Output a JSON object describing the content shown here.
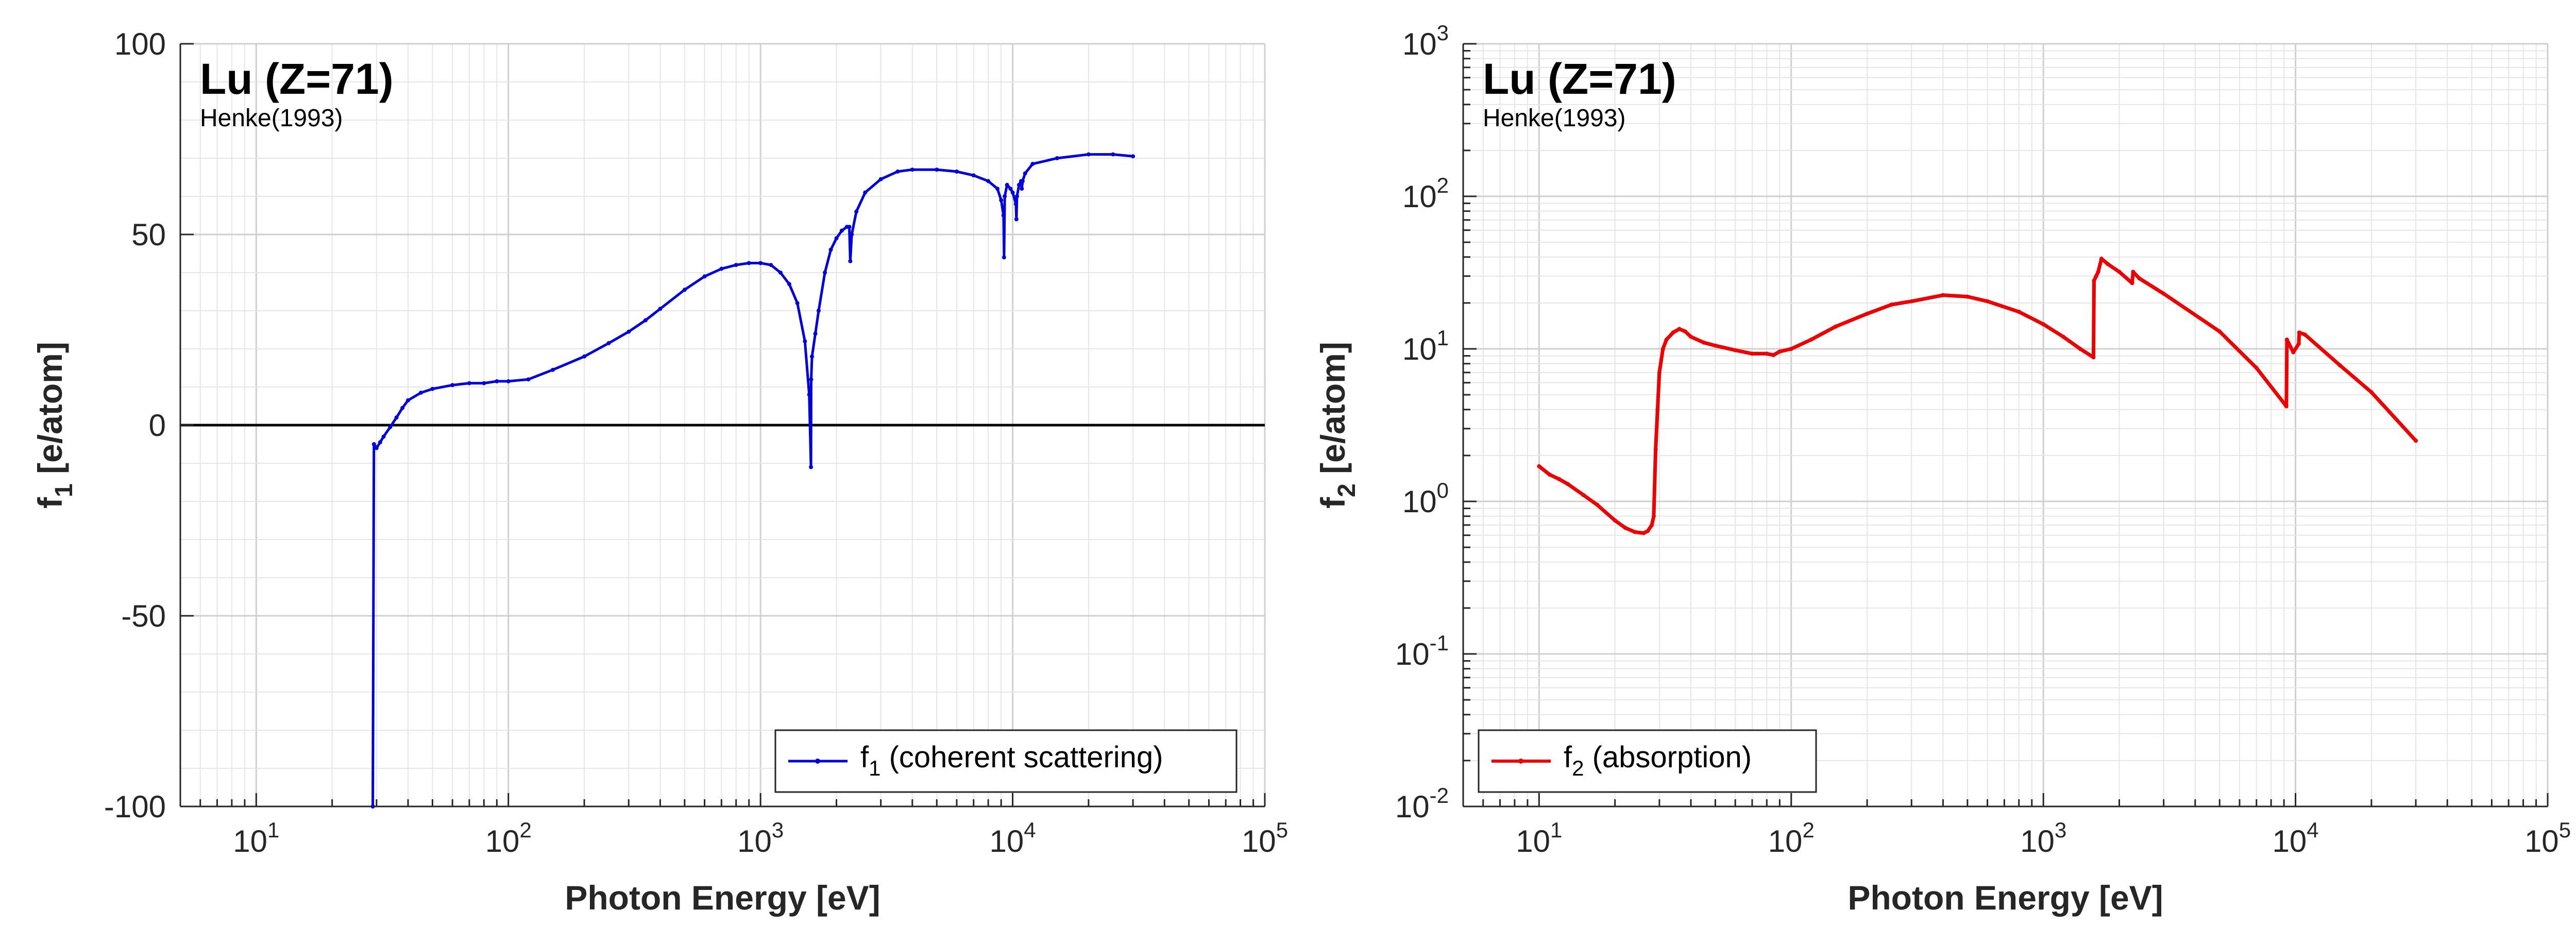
{
  "chart_data": [
    {
      "type": "line",
      "title": "Lu (Z=71)",
      "subtitle": "Henke(1993)",
      "xlabel": "Photon Energy [eV]",
      "ylabel_main": "f",
      "ylabel_sub": "1",
      "ylabel_rest": " [e/atom]",
      "xscale": "log",
      "yscale": "linear",
      "xlim": [
        5,
        100000
      ],
      "ylim": [
        -100,
        100
      ],
      "grid": true,
      "zero_line": true,
      "legend_position": "bottom-right",
      "x_ticks": [
        {
          "base": "10",
          "exp": "1",
          "value": 10
        },
        {
          "base": "10",
          "exp": "2",
          "value": 100
        },
        {
          "base": "10",
          "exp": "3",
          "value": 1000
        },
        {
          "base": "10",
          "exp": "4",
          "value": 10000
        },
        {
          "base": "10",
          "exp": "5",
          "value": 100000
        }
      ],
      "y_ticks": [
        {
          "label": "100",
          "value": 100
        },
        {
          "label": "50",
          "value": 50
        },
        {
          "label": "0",
          "value": 0
        },
        {
          "label": "-50",
          "value": -50
        },
        {
          "label": "-100",
          "value": -100
        }
      ],
      "series": [
        {
          "name_main": "f",
          "name_sub": "1",
          "name_rest": " (coherent scattering)",
          "color": "#0000dd",
          "x": [
            29,
            29.3,
            30,
            31,
            32,
            34,
            36,
            38,
            40,
            45,
            50,
            60,
            70,
            80,
            90,
            100,
            120,
            150,
            200,
            250,
            300,
            350,
            400,
            500,
            600,
            700,
            800,
            900,
            1000,
            1100,
            1200,
            1300,
            1400,
            1500,
            1560,
            1585,
            1588,
            1600,
            1650,
            1700,
            1800,
            1900,
            2000,
            2100,
            2200,
            2250,
            2270,
            2300,
            2400,
            2600,
            3000,
            3500,
            4000,
            5000,
            6000,
            7000,
            8000,
            8700,
            9000,
            9200,
            9244,
            9300,
            9500,
            9800,
            10000,
            10300,
            10349,
            10400,
            10600,
            10800,
            10870,
            10950,
            11200,
            12000,
            15000,
            20000,
            25000,
            30000
          ],
          "y": [
            -100,
            -5,
            -6,
            -4.5,
            -3,
            -0.5,
            2,
            4.5,
            6.5,
            8.5,
            9.5,
            10.5,
            11,
            11,
            11.5,
            11.5,
            12,
            14.5,
            18,
            21.5,
            24.5,
            27.5,
            30.5,
            35.5,
            39,
            41,
            42,
            42.5,
            42.5,
            42,
            40,
            37,
            32,
            22,
            8,
            -11,
            12,
            18,
            24,
            30,
            40,
            46,
            49,
            51,
            52,
            52,
            43,
            50,
            56,
            61,
            64.5,
            66.5,
            67,
            67,
            66.5,
            65.5,
            64,
            62,
            59,
            55,
            44,
            60,
            63,
            62,
            61,
            58,
            54,
            60,
            63,
            64,
            62,
            64,
            66,
            68.5,
            70,
            71,
            71,
            70.5
          ]
        }
      ]
    },
    {
      "type": "line",
      "title": "Lu (Z=71)",
      "subtitle": "Henke(1993)",
      "xlabel": "Photon Energy [eV]",
      "ylabel_main": "f",
      "ylabel_sub": "2",
      "ylabel_rest": " [e/atom]",
      "xscale": "log",
      "yscale": "log",
      "xlim": [
        5,
        100000
      ],
      "ylim": [
        0.01,
        1000
      ],
      "grid": true,
      "zero_line": false,
      "legend_position": "bottom-left",
      "x_ticks": [
        {
          "base": "10",
          "exp": "1",
          "value": 10
        },
        {
          "base": "10",
          "exp": "2",
          "value": 100
        },
        {
          "base": "10",
          "exp": "3",
          "value": 1000
        },
        {
          "base": "10",
          "exp": "4",
          "value": 10000
        },
        {
          "base": "10",
          "exp": "5",
          "value": 100000
        }
      ],
      "y_ticks": [
        {
          "base": "10",
          "exp": "3",
          "value": 1000
        },
        {
          "base": "10",
          "exp": "2",
          "value": 100
        },
        {
          "base": "10",
          "exp": "1",
          "value": 10
        },
        {
          "base": "10",
          "exp": "0",
          "value": 1
        },
        {
          "base": "10",
          "exp": "-1",
          "value": 0.1
        },
        {
          "base": "10",
          "exp": "-2",
          "value": 0.01
        }
      ],
      "series": [
        {
          "name_main": "f",
          "name_sub": "2",
          "name_rest": " (absorption)",
          "color": "#ee0000",
          "x": [
            10,
            11,
            12,
            13,
            15,
            17,
            20,
            22,
            24,
            26,
            27,
            28,
            28.5,
            29,
            29.5,
            30,
            31,
            32,
            34,
            36,
            38,
            40,
            45,
            50,
            60,
            70,
            80,
            85,
            90,
            100,
            120,
            150,
            200,
            250,
            300,
            400,
            500,
            600,
            800,
            1000,
            1200,
            1400,
            1580,
            1588,
            1620,
            1650,
            1700,
            1800,
            2000,
            2250,
            2270,
            2400,
            3000,
            5000,
            7000,
            9200,
            9244,
            9800,
            10300,
            10349,
            10900,
            15000,
            20000,
            30000
          ],
          "y": [
            1.7,
            1.5,
            1.4,
            1.3,
            1.1,
            0.95,
            0.75,
            0.67,
            0.63,
            0.62,
            0.64,
            0.7,
            0.8,
            2.2,
            4,
            7,
            10,
            11.5,
            12.8,
            13.5,
            13,
            12,
            11,
            10.5,
            9.8,
            9.3,
            9.3,
            9.1,
            9.6,
            10,
            11.5,
            14,
            17,
            19.5,
            20.5,
            22.5,
            22,
            20.5,
            17.5,
            14.5,
            12,
            10,
            8.8,
            28,
            30,
            32,
            39,
            36,
            32,
            27,
            32,
            29,
            23,
            13,
            7.5,
            4.2,
            11.5,
            9.5,
            10.8,
            12.8,
            12.4,
            7.8,
            5.2,
            2.5
          ]
        }
      ]
    }
  ]
}
